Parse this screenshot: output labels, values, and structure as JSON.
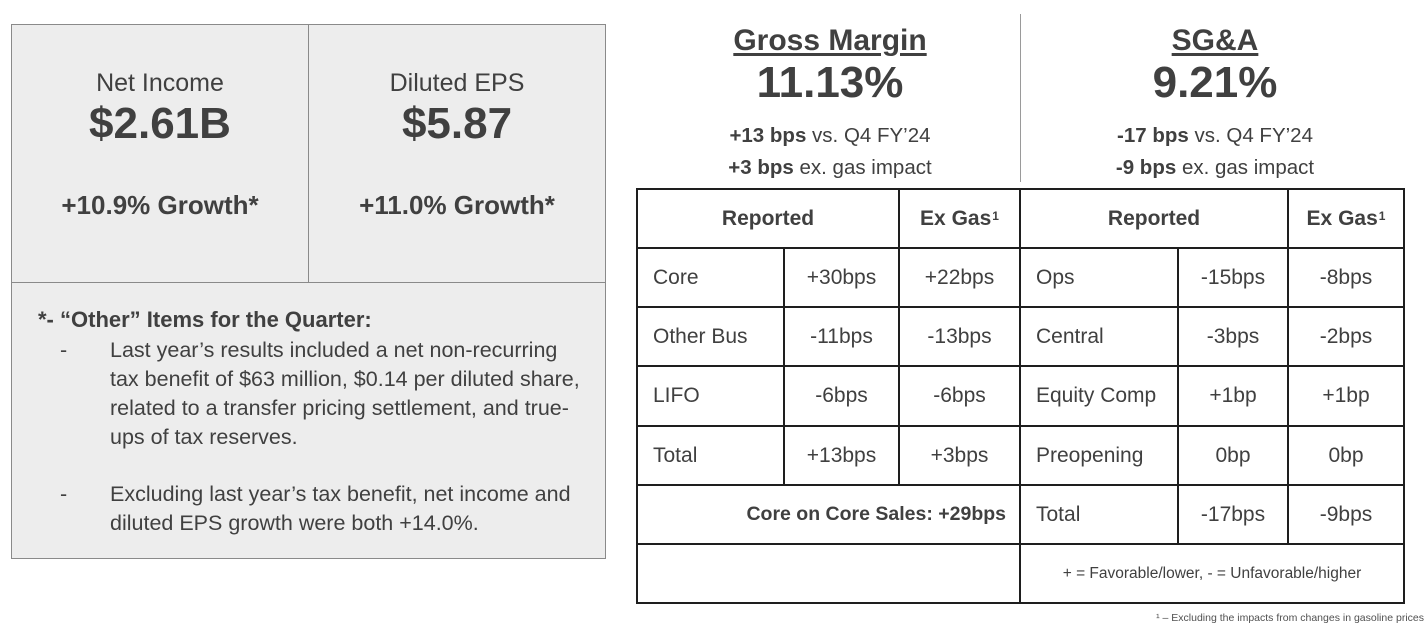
{
  "summary": {
    "net_income": {
      "label": "Net Income",
      "value": "$2.61B",
      "growth": "+10.9% Growth*"
    },
    "diluted_eps": {
      "label": "Diluted EPS",
      "value": "$5.87",
      "growth": "+11.0% Growth*"
    }
  },
  "notes": {
    "title": "*- “Other” Items for the Quarter:",
    "items": [
      {
        "dash": "-",
        "text": "Last year’s results included a net non-recurring tax benefit of $63 million, $0.14 per diluted share, related to a transfer pricing settlement, and true-ups of tax reserves."
      },
      {
        "dash": "-",
        "text": "Excluding last year’s tax benefit, net income and diluted EPS growth were both +14.0%."
      }
    ]
  },
  "gross_margin": {
    "title": "Gross Margin",
    "value": "11.13%",
    "line1_bold": "+13 bps",
    "line1_rest": " vs. Q4 FY’24",
    "line2_bold": "+3 bps",
    "line2_rest": " ex. gas impact"
  },
  "sga": {
    "title": "SG&A",
    "value": "9.21%",
    "line1_bold": "-17 bps",
    "line1_rest": " vs. Q4 FY’24",
    "line2_bold": "-9 bps",
    "line2_rest": " ex. gas impact"
  },
  "table": {
    "gm_headers": {
      "reported": "Reported",
      "ex_gas": "Ex Gas",
      "sup": "1"
    },
    "sga_headers": {
      "reported": "Reported",
      "ex_gas": "Ex Gas",
      "sup": "1"
    },
    "gm_rows": [
      {
        "label": "Core",
        "reported": "+30bps",
        "ex_gas": "+22bps"
      },
      {
        "label": "Other Bus",
        "reported": "-11bps",
        "ex_gas": "-13bps"
      },
      {
        "label": "LIFO",
        "reported": "-6bps",
        "ex_gas": "-6bps"
      },
      {
        "label": "Total",
        "reported": "+13bps",
        "ex_gas": "+3bps"
      }
    ],
    "gm_core_on_core": "Core on Core Sales: +29bps",
    "sga_rows": [
      {
        "label": "Ops",
        "reported": "-15bps",
        "ex_gas": "-8bps"
      },
      {
        "label": "Central",
        "reported": "-3bps",
        "ex_gas": "-2bps"
      },
      {
        "label": "Equity Comp",
        "reported": "+1bp",
        "ex_gas": "+1bp"
      },
      {
        "label": "Preopening",
        "reported": "0bp",
        "ex_gas": "0bp"
      },
      {
        "label": "Total",
        "reported": "-17bps",
        "ex_gas": "-9bps"
      }
    ],
    "legend": "+ = Favorable/lower, - = Unfavorable/higher"
  },
  "footnote": "¹ – Excluding the impacts from changes in gasoline prices"
}
